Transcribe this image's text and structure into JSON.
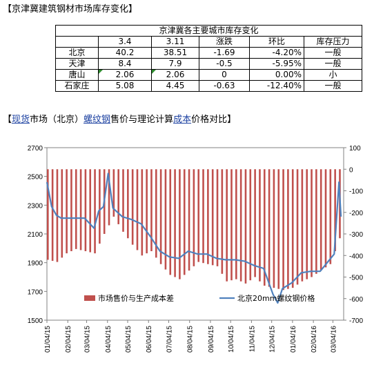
{
  "section1": {
    "title": "【京津冀建筑钢材市场库存变化】"
  },
  "table": {
    "title": "京津冀各主要城市库存变化",
    "headers": [
      "",
      "3.4",
      "3.11",
      "涨跌",
      "环比",
      "库存压力"
    ],
    "rows": [
      {
        "city": "北京",
        "d1": "40.2",
        "d2": "38.51",
        "chg": "-1.69",
        "pct": "-4.20%",
        "pressure": "一般"
      },
      {
        "city": "天津",
        "d1": "8.4",
        "d2": "7.9",
        "chg": "-0.5",
        "pct": "-5.95%",
        "pressure": "一般"
      },
      {
        "city": "唐山",
        "d1": "2.06",
        "d2": "2.06",
        "chg": "0",
        "pct": "0.00%",
        "pressure": "小"
      },
      {
        "city": "石家庄",
        "d1": "5.08",
        "d2": "4.45",
        "chg": "-0.63",
        "pct": "-12.40%",
        "pressure": "一般"
      }
    ]
  },
  "section2": {
    "bracket_open": "【",
    "part1": "现货",
    "part2": "市场（北京）",
    "part3": "螺纹钢",
    "part4": "售价与理论计算",
    "part5": "成本",
    "part6": "价格对比】"
  },
  "colors": {
    "bar": "#c0504d",
    "line": "#4f81bd",
    "underline_text": "#1a3fa0"
  },
  "chart_data": {
    "type": "bar+line",
    "legend": [
      {
        "name": "市场售价与生产成本差",
        "kind": "bar",
        "color": "#c0504d"
      },
      {
        "name": "北京20mm螺纹钢价格",
        "kind": "line",
        "color": "#4f81bd"
      }
    ],
    "x_tick_labels": [
      "01/04/15",
      "02/04/15",
      "03/04/15",
      "04/04/15",
      "05/04/15",
      "06/04/15",
      "07/04/15",
      "08/04/15",
      "09/04/15",
      "10/04/15",
      "11/04/15",
      "12/04/15",
      "01/04/16",
      "02/04/16",
      "03/04/16"
    ],
    "y_left": {
      "range": [
        1500,
        2700
      ],
      "ticks": [
        1500,
        1700,
        1900,
        2100,
        2300,
        2500,
        2700
      ]
    },
    "y_right": {
      "range": [
        -700,
        100
      ],
      "ticks": [
        -700,
        -600,
        -500,
        -400,
        -300,
        -200,
        -100,
        0,
        100
      ]
    },
    "bar_series": {
      "name": "市场售价与生产成本差",
      "axis": "right",
      "x": [
        "01/04/15",
        "01/18/15",
        "02/01/15",
        "02/15/15",
        "03/01/15",
        "03/15/15",
        "03/29/15",
        "04/12/15",
        "04/26/15",
        "05/10/15",
        "05/24/15",
        "06/07/15",
        "06/21/15",
        "07/05/15",
        "07/19/15",
        "08/02/15",
        "08/16/15",
        "08/30/15",
        "09/13/15",
        "09/27/15",
        "10/11/15",
        "10/25/15",
        "11/08/15",
        "11/22/15",
        "12/06/15",
        "12/20/15",
        "01/03/16",
        "01/17/16",
        "01/31/16",
        "02/14/16",
        "02/28/16",
        "03/13/16"
      ],
      "values": [
        -420,
        -430,
        -390,
        -370,
        -380,
        -390,
        -300,
        -220,
        -290,
        -350,
        -400,
        -380,
        -440,
        -490,
        -510,
        -470,
        -430,
        -440,
        -450,
        -520,
        -510,
        -530,
        -500,
        -540,
        -550,
        -560,
        -550,
        -520,
        -500,
        -470,
        -440,
        -320
      ]
    },
    "line_series": {
      "name": "北京20mm螺纹钢价格",
      "axis": "left",
      "x": [
        "01/04/15",
        "01/11/15",
        "01/18/15",
        "01/25/15",
        "02/01/15",
        "02/15/15",
        "03/01/15",
        "03/15/15",
        "03/22/15",
        "03/29/15",
        "04/05/15",
        "04/12/15",
        "04/19/15",
        "04/26/15",
        "05/10/15",
        "05/24/15",
        "06/07/15",
        "06/21/15",
        "07/05/15",
        "07/19/15",
        "08/02/15",
        "08/16/15",
        "08/30/15",
        "09/13/15",
        "09/27/15",
        "10/11/15",
        "10/25/15",
        "11/08/15",
        "11/22/15",
        "12/06/15",
        "12/13/15",
        "12/20/15",
        "01/03/16",
        "01/17/16",
        "01/31/16",
        "02/14/16",
        "02/28/16",
        "03/06/16",
        "03/13/16",
        "03/16/16"
      ],
      "values": [
        2460,
        2290,
        2230,
        2210,
        2210,
        2210,
        2210,
        2140,
        2260,
        2290,
        2520,
        2280,
        2250,
        2220,
        2200,
        2170,
        2080,
        1980,
        1940,
        1930,
        1980,
        1960,
        1960,
        1930,
        1920,
        1920,
        1910,
        1880,
        1860,
        1680,
        1620,
        1720,
        1760,
        1830,
        1840,
        1840,
        1920,
        1960,
        2460,
        2220
      ]
    }
  }
}
